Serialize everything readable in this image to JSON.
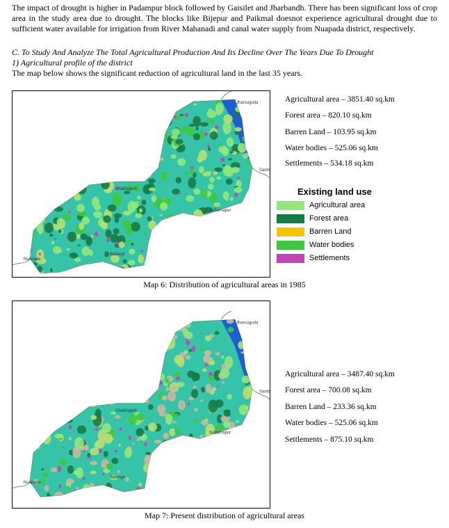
{
  "paragraph": "The impact of drought is higher in Padampur block followed by Gaisilet and Jharbandh. There has been significant loss of crop area in the study area due to drought. The blocks like Bijepur and Paikmal doesnot experience agricultural drought due to sufficient water available for irrigation from River Mahanadi and canal water supply from Nuapada district, respectively.",
  "section": {
    "heading": "C.  To Study And Analyze The Total Agricultural Production And Its Decline Over The Years Due To Drought",
    "subheading": "1)    Agricultural profile of the district",
    "intro": "The map below shows the significant reduction of agricultural land in the last 35 years."
  },
  "maps": [
    {
      "labels": [
        "Jharsuguda",
        "Sambalpur",
        "Chattisgarh",
        "Subarnapur",
        "Balangir",
        "Nuapada"
      ],
      "stats": [
        "Agricultural area – 3851.40 sq.km",
        "Forest area – 820.10 sq.km",
        "Barren Land – 103.95 sq.km",
        "Water bodies – 525.06 sq.km",
        "Settlements – 534.18 sq.km"
      ],
      "caption": "Map 6: Distribution of agricultural areas in 1985"
    },
    {
      "labels": [
        "Jharsuguda",
        "Sambalpur",
        "Chattisgarh",
        "Subarnapur",
        "Balangir",
        "Nuapada"
      ],
      "stats": [
        "Agricultural area – 3487.40 sq.km",
        "Forest area – 700.08 sq.km",
        "Barren Land – 233.36 sq.km",
        "Water bodies – 525.06 sq.km",
        "Settlements – 875.10 sq.km"
      ],
      "caption": "Map 7: Present distribution of agricultural areas"
    }
  ],
  "legend": {
    "title": "Existing land use",
    "items": [
      {
        "label": "Agricultural area",
        "color": "#92e87a"
      },
      {
        "label": "Forest area",
        "color": "#187a44"
      },
      {
        "label": "Barren Land",
        "color": "#f5c400"
      },
      {
        "label": "Water bodies",
        "color": "#3ec83e"
      },
      {
        "label": "Settlements",
        "color": "#c244b4"
      }
    ]
  }
}
